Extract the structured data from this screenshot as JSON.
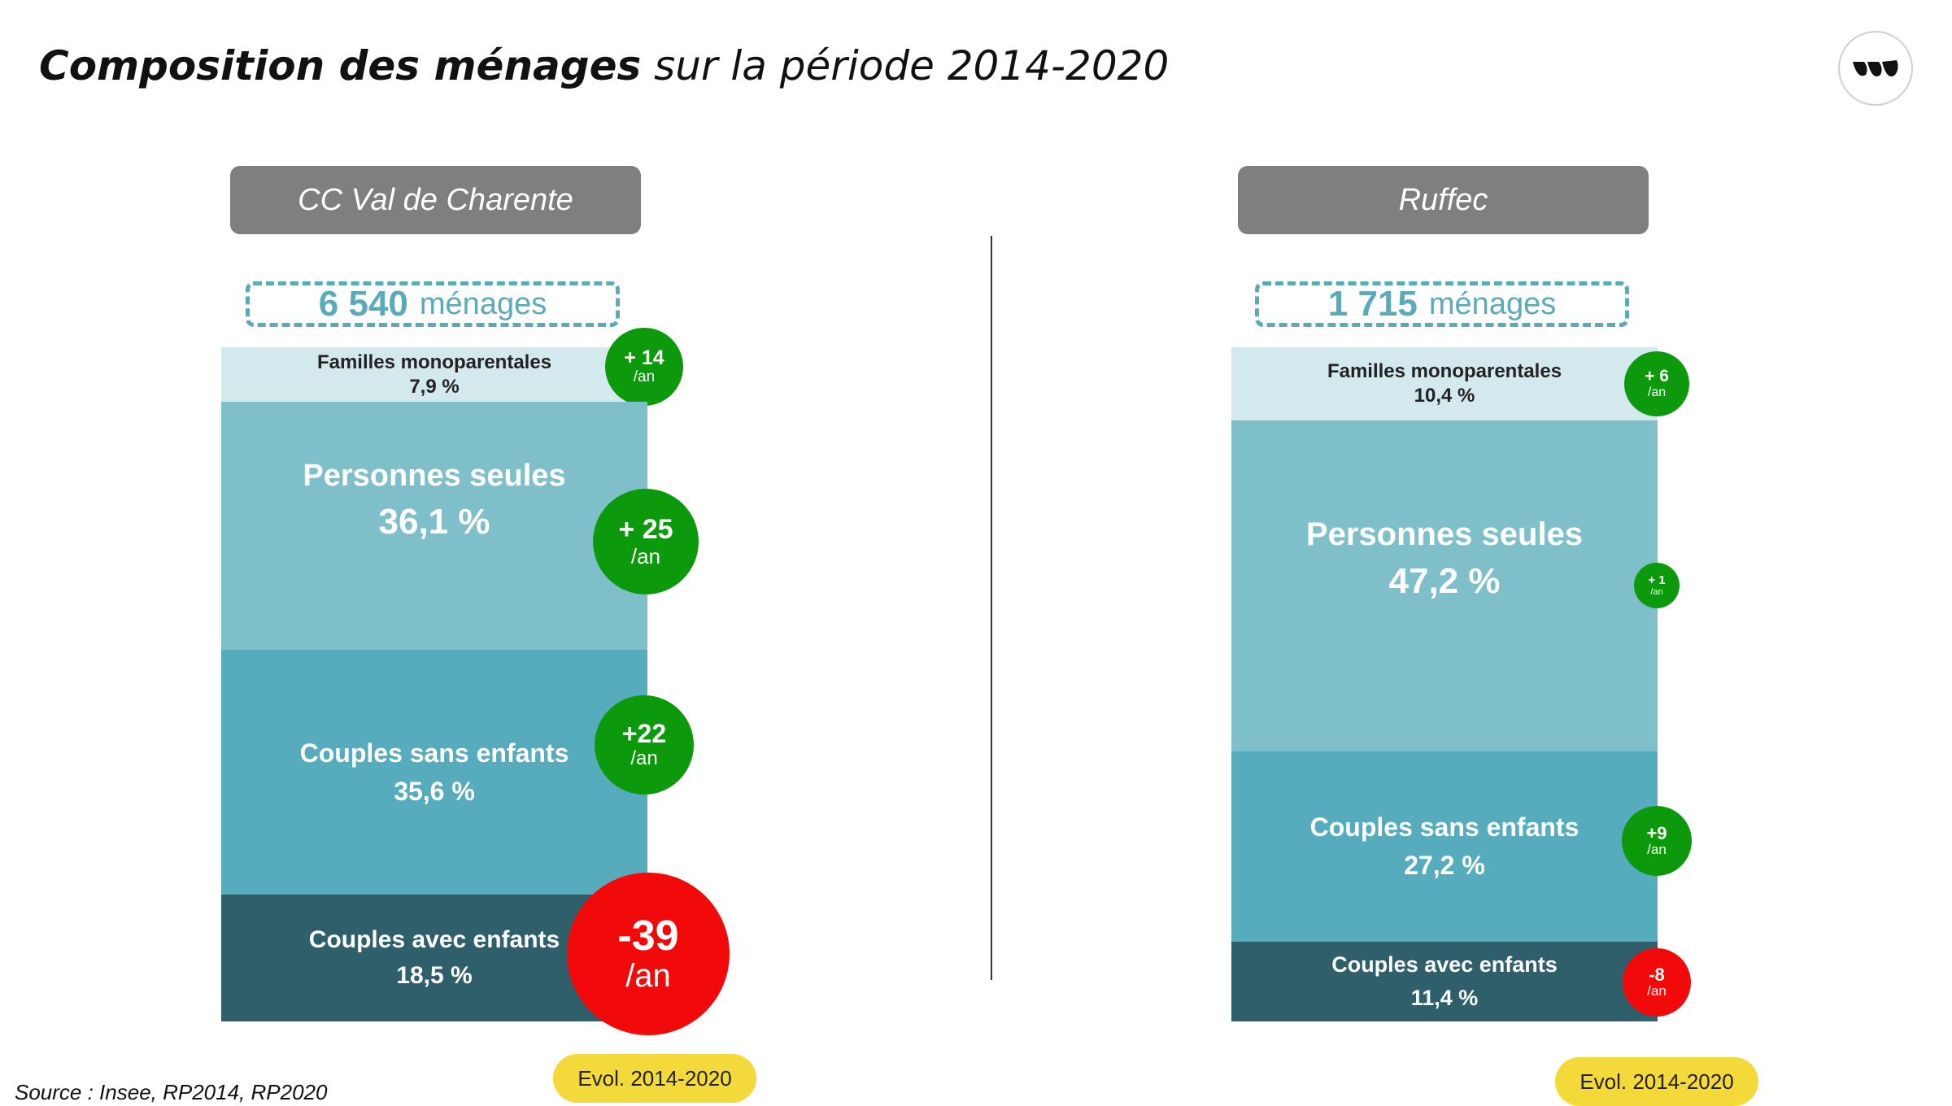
{
  "title": {
    "bold": "Composition des ménages",
    "rest": "sur la période 2014-2020"
  },
  "logo": "logo-icon",
  "source": "Source : Insee, RP2014, RP2020",
  "evol_label": "Evol. 2014-2020",
  "chart_data": [
    {
      "type": "bar",
      "stacked": true,
      "name": "CC Val de Charente",
      "total_value": "6 540",
      "total_unit": "ménages",
      "segments": [
        {
          "label": "Familles monoparentales",
          "pct_label": "7,9 %",
          "pct": 7.9,
          "change_value": "+ 14",
          "change_unit": "/an",
          "change": 14,
          "color": "#d3e9ed"
        },
        {
          "label": "Personnes seules",
          "pct_label": "36,1 %",
          "pct": 36.1,
          "change_value": "+ 25",
          "change_unit": "/an",
          "change": 25,
          "color": "#7fbfca"
        },
        {
          "label": "Couples sans enfants",
          "pct_label": "35,6 %",
          "pct": 35.6,
          "change_value": "+22",
          "change_unit": "/an",
          "change": 22,
          "color": "#56acbd"
        },
        {
          "label": "Couples avec enfants",
          "pct_label": "18,5 %",
          "pct": 18.5,
          "change_value": "-39",
          "change_unit": "/an",
          "change": -39,
          "color": "#2e5f6a"
        }
      ]
    },
    {
      "type": "bar",
      "stacked": true,
      "name": "Ruffec",
      "total_value": "1 715",
      "total_unit": "ménages",
      "segments": [
        {
          "label": "Familles monoparentales",
          "pct_label": "10,4 %",
          "pct": 10.4,
          "change_value": "+ 6",
          "change_unit": "/an",
          "change": 6,
          "color": "#d3e9ed"
        },
        {
          "label": "Personnes seules",
          "pct_label": "47,2 %",
          "pct": 47.2,
          "change_value": "+ 1",
          "change_unit": "/an",
          "change": 1,
          "color": "#7fbfca"
        },
        {
          "label": "Couples sans enfants",
          "pct_label": "27,2 %",
          "pct": 27.2,
          "change_value": "+9",
          "change_unit": "/an",
          "change": 9,
          "color": "#56acbd"
        },
        {
          "label": "Couples avec enfants",
          "pct_label": "11,4 %",
          "pct": 11.4,
          "change_value": "-8",
          "change_unit": "/an",
          "change": -8,
          "color": "#2e5f6a"
        }
      ]
    }
  ],
  "colors": {
    "positive": "#0c9a0c",
    "negative": "#f20a0a",
    "header": "#7f7f7f",
    "accent": "#5aaab9",
    "evol": "#f4d93b"
  }
}
